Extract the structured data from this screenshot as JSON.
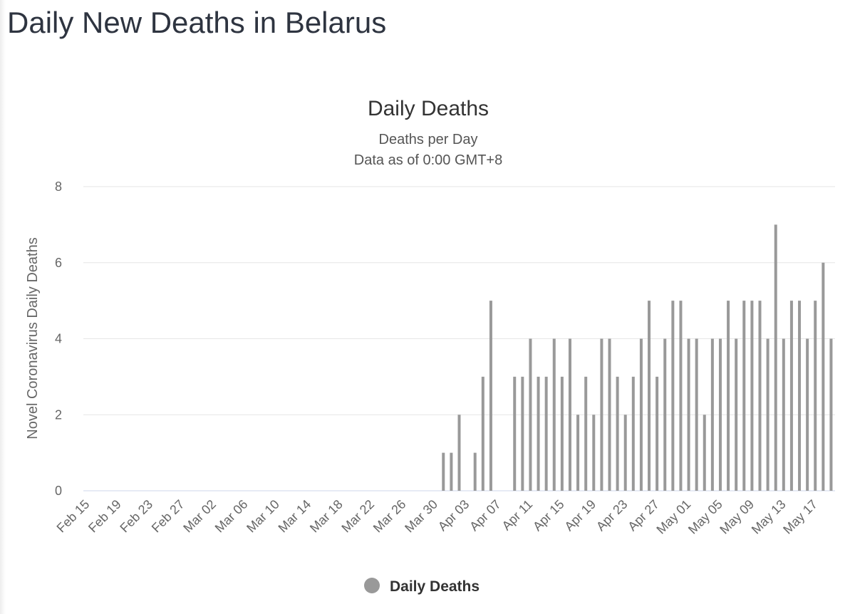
{
  "page_title": "Daily New Deaths in Belarus",
  "chart_data": {
    "type": "bar",
    "title": "Daily Deaths",
    "subtitle": [
      "Deaths per Day",
      "Data as of 0:00 GMT+8"
    ],
    "y_label": "Novel Coronavirus Daily Deaths",
    "categories": [
      "Feb 15",
      null,
      null,
      null,
      "Feb 19",
      null,
      null,
      null,
      "Feb 23",
      null,
      null,
      null,
      "Feb 27",
      null,
      null,
      null,
      "Mar 02",
      null,
      null,
      null,
      "Mar 06",
      null,
      null,
      null,
      "Mar 10",
      null,
      null,
      null,
      "Mar 14",
      null,
      null,
      null,
      "Mar 18",
      null,
      null,
      null,
      "Mar 22",
      null,
      null,
      null,
      "Mar 26",
      null,
      null,
      null,
      "Mar 30",
      null,
      null,
      null,
      "Apr 03",
      null,
      null,
      null,
      "Apr 07",
      null,
      null,
      null,
      "Apr 11",
      null,
      null,
      null,
      "Apr 15",
      null,
      null,
      null,
      "Apr 19",
      null,
      null,
      null,
      "Apr 23",
      null,
      null,
      null,
      "Apr 27",
      null,
      null,
      null,
      "May 01",
      null,
      null,
      null,
      "May 05",
      null,
      null,
      null,
      "May 09",
      null,
      null,
      null,
      "May 13",
      null,
      null,
      null,
      "May 17",
      null,
      null
    ],
    "series": [
      {
        "name": "Daily Deaths",
        "color": "#999999",
        "values": [
          0,
          0,
          0,
          0,
          0,
          0,
          0,
          0,
          0,
          0,
          0,
          0,
          0,
          0,
          0,
          0,
          0,
          0,
          0,
          0,
          0,
          0,
          0,
          0,
          0,
          0,
          0,
          0,
          0,
          0,
          0,
          0,
          0,
          0,
          0,
          0,
          0,
          0,
          0,
          0,
          0,
          0,
          0,
          0,
          0,
          1,
          1,
          2,
          0,
          1,
          3,
          5,
          0,
          0,
          3,
          3,
          4,
          3,
          3,
          4,
          3,
          4,
          2,
          3,
          2,
          4,
          4,
          3,
          2,
          3,
          4,
          5,
          3,
          4,
          5,
          5,
          4,
          4,
          2,
          4,
          4,
          5,
          4,
          5,
          5,
          5,
          4,
          7,
          4,
          5,
          5,
          4,
          5,
          6,
          4
        ]
      }
    ],
    "ylim": [
      0,
      8
    ],
    "yticks": [
      0,
      2,
      4,
      6,
      8
    ],
    "grid": true,
    "legend": "bottom"
  }
}
